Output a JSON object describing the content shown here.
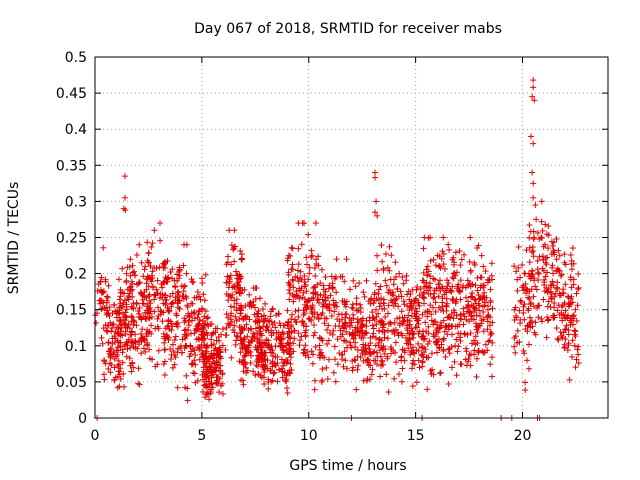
{
  "chart_data": {
    "type": "scatter",
    "title": "Day 067 of 2018, SRMTID for receiver mabs",
    "xlabel": "GPS time / hours",
    "ylabel": "SRMTID / TECUs",
    "xlim": [
      0,
      24
    ],
    "ylim": [
      0,
      0.5
    ],
    "xticks": [
      "0",
      "5",
      "10",
      "15",
      "20"
    ],
    "xtick_values": [
      0,
      5,
      10,
      15,
      20
    ],
    "yticks": [
      "0",
      "0.05",
      "0.1",
      "0.15",
      "0.2",
      "0.25",
      "0.3",
      "0.35",
      "0.4",
      "0.45",
      "0.5"
    ],
    "ytick_values": [
      0,
      0.05,
      0.1,
      0.15,
      0.2,
      0.25,
      0.3,
      0.35,
      0.4,
      0.45,
      0.5
    ],
    "grid": true,
    "marker": "+",
    "color": "#e00000",
    "series": [
      {
        "name": "SRMTID",
        "clusters": [
          {
            "t0": 0.0,
            "t1": 0.7,
            "ymin": 0.06,
            "ymax": 0.24,
            "n": 40
          },
          {
            "t0": 0.4,
            "t1": 1.2,
            "ymin": 0.02,
            "ymax": 0.16,
            "n": 70
          },
          {
            "t0": 1.0,
            "t1": 1.8,
            "ymin": 0.02,
            "ymax": 0.23,
            "n": 90
          },
          {
            "t0": 1.6,
            "t1": 2.6,
            "ymin": 0.03,
            "ymax": 0.24,
            "n": 100
          },
          {
            "t0": 2.4,
            "t1": 3.4,
            "ymin": 0.03,
            "ymax": 0.27,
            "n": 90
          },
          {
            "t0": 3.2,
            "t1": 4.3,
            "ymin": 0.02,
            "ymax": 0.24,
            "n": 110
          },
          {
            "t0": 4.2,
            "t1": 5.3,
            "ymin": 0.01,
            "ymax": 0.2,
            "n": 120
          },
          {
            "t0": 5.0,
            "t1": 6.0,
            "ymin": 0.0,
            "ymax": 0.13,
            "n": 140
          },
          {
            "t0": 6.1,
            "t1": 6.9,
            "ymin": 0.04,
            "ymax": 0.26,
            "n": 100
          },
          {
            "t0": 6.8,
            "t1": 8.0,
            "ymin": 0.02,
            "ymax": 0.18,
            "n": 130
          },
          {
            "t0": 7.6,
            "t1": 9.2,
            "ymin": 0.01,
            "ymax": 0.16,
            "n": 180
          },
          {
            "t0": 9.0,
            "t1": 10.5,
            "ymin": 0.02,
            "ymax": 0.27,
            "n": 160
          },
          {
            "t0": 10.5,
            "t1": 11.8,
            "ymin": 0.02,
            "ymax": 0.22,
            "n": 120
          },
          {
            "t0": 11.9,
            "t1": 13.0,
            "ymin": 0.01,
            "ymax": 0.19,
            "n": 120
          },
          {
            "t0": 13.0,
            "t1": 14.2,
            "ymin": 0.02,
            "ymax": 0.24,
            "n": 130
          },
          {
            "t0": 14.2,
            "t1": 15.4,
            "ymin": 0.02,
            "ymax": 0.2,
            "n": 130
          },
          {
            "t0": 15.3,
            "t1": 16.4,
            "ymin": 0.01,
            "ymax": 0.25,
            "n": 130
          },
          {
            "t0": 16.4,
            "t1": 17.6,
            "ymin": 0.02,
            "ymax": 0.25,
            "n": 130
          },
          {
            "t0": 17.5,
            "t1": 18.6,
            "ymin": 0.02,
            "ymax": 0.24,
            "n": 120
          },
          {
            "t0": 19.6,
            "t1": 20.4,
            "ymin": 0.02,
            "ymax": 0.25,
            "n": 60
          },
          {
            "t0": 20.3,
            "t1": 21.0,
            "ymin": 0.05,
            "ymax": 0.3,
            "n": 60
          },
          {
            "t0": 21.0,
            "t1": 21.8,
            "ymin": 0.06,
            "ymax": 0.28,
            "n": 80
          },
          {
            "t0": 21.8,
            "t1": 22.7,
            "ymin": 0.03,
            "ymax": 0.24,
            "n": 90
          }
        ],
        "points": [
          [
            1.4,
            0.335
          ],
          [
            1.4,
            0.305
          ],
          [
            1.35,
            0.29
          ],
          [
            1.42,
            0.288
          ],
          [
            13.1,
            0.34
          ],
          [
            13.1,
            0.333
          ],
          [
            13.15,
            0.3
          ],
          [
            13.1,
            0.285
          ],
          [
            13.2,
            0.28
          ],
          [
            20.5,
            0.468
          ],
          [
            20.5,
            0.458
          ],
          [
            20.45,
            0.445
          ],
          [
            20.55,
            0.44
          ],
          [
            20.4,
            0.39
          ],
          [
            20.5,
            0.38
          ],
          [
            20.45,
            0.34
          ],
          [
            20.5,
            0.325
          ],
          [
            20.5,
            0.305
          ],
          [
            20.6,
            0.295
          ],
          [
            0.1,
            0.0
          ],
          [
            12.0,
            0.0
          ],
          [
            19.0,
            0.0
          ],
          [
            19.5,
            0.0
          ],
          [
            20.7,
            0.0
          ],
          [
            20.8,
            0.0
          ],
          [
            15.3,
            0.0
          ]
        ]
      }
    ]
  }
}
